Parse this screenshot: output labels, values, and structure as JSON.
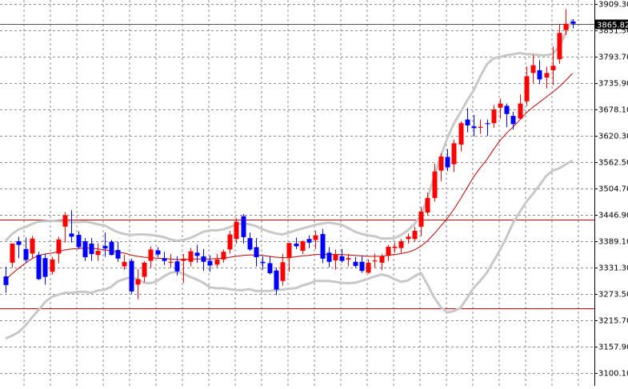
{
  "chart_data": {
    "type": "candlestick",
    "ylim": [
      3100.1,
      3909.3
    ],
    "y_ticks": [
      "3909.30",
      "3851.50",
      "3793.70",
      "3735.90",
      "3678.10",
      "3620.30",
      "3562.50",
      "3504.70",
      "3446.90",
      "3389.10",
      "3331.30",
      "3273.50",
      "3215.70",
      "3157.90",
      "3100.10"
    ],
    "current_price": "3865.82",
    "horizontal_lines": [
      3437.0,
      3242.0
    ],
    "colors": {
      "bull": "#ff0000",
      "bear": "#0000ff",
      "ma": "#c00000",
      "bands": "#c8c8c8",
      "grid": "#8c8c8c",
      "hline": "#d80000",
      "price_line": "#505050"
    },
    "candles": [
      [
        3312,
        3333,
        3276,
        3293
      ],
      [
        3342,
        3381,
        3331,
        3384
      ],
      [
        3389,
        3399,
        3352,
        3381
      ],
      [
        3372,
        3397,
        3342,
        3348
      ],
      [
        3362,
        3401,
        3351,
        3395
      ],
      [
        3359,
        3366,
        3304,
        3306
      ],
      [
        3352,
        3361,
        3294,
        3311
      ],
      [
        3322,
        3355,
        3316,
        3349
      ],
      [
        3362,
        3399,
        3341,
        3393
      ],
      [
        3421,
        3453,
        3386,
        3446
      ],
      [
        3406,
        3457,
        3386,
        3399
      ],
      [
        3403,
        3411,
        3372,
        3376
      ],
      [
        3389,
        3396,
        3346,
        3354
      ],
      [
        3384,
        3396,
        3346,
        3361
      ],
      [
        3359,
        3385,
        3346,
        3368
      ],
      [
        3379,
        3408,
        3355,
        3373
      ],
      [
        3388,
        3392,
        3358,
        3359
      ],
      [
        3370,
        3388,
        3344,
        3351
      ],
      [
        3334,
        3359,
        3326,
        3344
      ],
      [
        3346,
        3351,
        3274,
        3279
      ],
      [
        3294,
        3328,
        3262,
        3306
      ],
      [
        3311,
        3346,
        3299,
        3342
      ],
      [
        3346,
        3378,
        3331,
        3371
      ],
      [
        3369,
        3376,
        3354,
        3360
      ],
      [
        3352,
        3366,
        3337,
        3346
      ],
      [
        3342,
        3361,
        3331,
        3344
      ],
      [
        3345,
        3356,
        3314,
        3323
      ],
      [
        3346,
        3361,
        3298,
        3351
      ],
      [
        3344,
        3374,
        3334,
        3367
      ],
      [
        3364,
        3381,
        3342,
        3357
      ],
      [
        3356,
        3372,
        3324,
        3344
      ],
      [
        3346,
        3358,
        3322,
        3336
      ],
      [
        3338,
        3361,
        3332,
        3349
      ],
      [
        3349,
        3371,
        3342,
        3366
      ],
      [
        3371,
        3412,
        3362,
        3404
      ],
      [
        3394,
        3440,
        3384,
        3432
      ],
      [
        3444,
        3449,
        3384,
        3398
      ],
      [
        3396,
        3408,
        3368,
        3371
      ],
      [
        3376,
        3396,
        3334,
        3354
      ],
      [
        3344,
        3356,
        3327,
        3341
      ],
      [
        3341,
        3355,
        3316,
        3319
      ],
      [
        3325,
        3331,
        3271,
        3283
      ],
      [
        3302,
        3361,
        3292,
        3343
      ],
      [
        3353,
        3386,
        3322,
        3385
      ],
      [
        3384,
        3397,
        3372,
        3378
      ],
      [
        3368,
        3391,
        3361,
        3389
      ],
      [
        3394,
        3402,
        3374,
        3386
      ],
      [
        3392,
        3412,
        3372,
        3402
      ],
      [
        3405,
        3416,
        3341,
        3351
      ],
      [
        3364,
        3376,
        3332,
        3344
      ],
      [
        3347,
        3371,
        3327,
        3361
      ],
      [
        3356,
        3372,
        3342,
        3346
      ],
      [
        3349,
        3361,
        3334,
        3352
      ],
      [
        3344,
        3355,
        3331,
        3335
      ],
      [
        3344,
        3358,
        3320,
        3324
      ],
      [
        3320,
        3349,
        3318,
        3342
      ],
      [
        3345,
        3362,
        3331,
        3347
      ],
      [
        3342,
        3361,
        3326,
        3356
      ],
      [
        3357,
        3381,
        3346,
        3377
      ],
      [
        3374,
        3386,
        3364,
        3377
      ],
      [
        3374,
        3394,
        3364,
        3389
      ],
      [
        3394,
        3406,
        3384,
        3399
      ],
      [
        3394,
        3421,
        3388,
        3412
      ],
      [
        3421,
        3464,
        3401,
        3454
      ],
      [
        3452,
        3496,
        3446,
        3484
      ],
      [
        3484,
        3559,
        3476,
        3542
      ],
      [
        3544,
        3582,
        3521,
        3575
      ],
      [
        3574,
        3591,
        3543,
        3551
      ],
      [
        3558,
        3612,
        3541,
        3604
      ],
      [
        3601,
        3652,
        3586,
        3648
      ],
      [
        3656,
        3681,
        3628,
        3643
      ],
      [
        3641,
        3666,
        3619,
        3637
      ],
      [
        3638,
        3656,
        3625,
        3640
      ],
      [
        3648,
        3656,
        3620,
        3646
      ],
      [
        3648,
        3688,
        3638,
        3678
      ],
      [
        3682,
        3702,
        3658,
        3691
      ],
      [
        3686,
        3691,
        3639,
        3668
      ],
      [
        3664,
        3673,
        3634,
        3646
      ],
      [
        3658,
        3711,
        3658,
        3691
      ],
      [
        3696,
        3772,
        3686,
        3751
      ],
      [
        3758,
        3798,
        3736,
        3775
      ],
      [
        3764,
        3786,
        3734,
        3744
      ],
      [
        3748,
        3772,
        3724,
        3758
      ],
      [
        3764,
        3816,
        3731,
        3774
      ],
      [
        3788,
        3864,
        3778,
        3846
      ],
      [
        3852,
        3898,
        3841,
        3866
      ],
      [
        3871,
        3876,
        3856,
        3866
      ]
    ],
    "ma": [
      3305,
      3318,
      3330,
      3341,
      3351,
      3358,
      3361,
      3363,
      3366,
      3370,
      3372,
      3373,
      3374,
      3374,
      3372,
      3370,
      3368,
      3365,
      3363,
      3359,
      3356,
      3354,
      3353,
      3352,
      3351,
      3350,
      3349,
      3349,
      3350,
      3350,
      3350,
      3350,
      3351,
      3352,
      3354,
      3356,
      3358,
      3359,
      3359,
      3358,
      3356,
      3354,
      3353,
      3353,
      3355,
      3357,
      3358,
      3360,
      3360,
      3360,
      3360,
      3360,
      3359,
      3358,
      3357,
      3356,
      3356,
      3356,
      3358,
      3360,
      3362,
      3365,
      3370,
      3378,
      3390,
      3405,
      3422,
      3439,
      3459,
      3482,
      3506,
      3530,
      3550,
      3568,
      3590,
      3610,
      3626,
      3640,
      3655,
      3671,
      3683,
      3694,
      3705,
      3716,
      3728,
      3742,
      3757
    ],
    "upper_band": [
      3390,
      3405,
      3415,
      3420,
      3427,
      3432,
      3433,
      3434,
      3433,
      3432,
      3431,
      3431,
      3432,
      3430,
      3426,
      3424,
      3416,
      3409,
      3405,
      3403,
      3404,
      3404,
      3403,
      3401,
      3398,
      3393,
      3390,
      3392,
      3396,
      3403,
      3410,
      3413,
      3413,
      3415,
      3420,
      3426,
      3428,
      3426,
      3422,
      3415,
      3410,
      3406,
      3404,
      3408,
      3413,
      3417,
      3421,
      3425,
      3428,
      3430,
      3428,
      3425,
      3418,
      3410,
      3405,
      3402,
      3400,
      3395,
      3395,
      3396,
      3403,
      3413,
      3426,
      3446,
      3483,
      3530,
      3575,
      3615,
      3647,
      3672,
      3697,
      3720,
      3750,
      3777,
      3790,
      3793,
      3797,
      3799,
      3802,
      3799,
      3799,
      3797,
      3797,
      3800,
      3816,
      3847,
      3876
    ],
    "lower_band": [
      3176,
      3182,
      3190,
      3204,
      3222,
      3238,
      3256,
      3267,
      3272,
      3276,
      3276,
      3278,
      3278,
      3276,
      3281,
      3283,
      3289,
      3301,
      3306,
      3310,
      3306,
      3298,
      3297,
      3302,
      3312,
      3320,
      3322,
      3318,
      3311,
      3305,
      3298,
      3288,
      3286,
      3286,
      3284,
      3282,
      3282,
      3284,
      3280,
      3280,
      3280,
      3282,
      3283,
      3285,
      3286,
      3292,
      3296,
      3302,
      3302,
      3302,
      3300,
      3298,
      3297,
      3298,
      3302,
      3307,
      3312,
      3316,
      3313,
      3306,
      3300,
      3303,
      3312,
      3320,
      3294,
      3266,
      3245,
      3233,
      3236,
      3243,
      3264,
      3287,
      3302,
      3320,
      3345,
      3370,
      3398,
      3430,
      3453,
      3476,
      3493,
      3512,
      3532,
      3544,
      3549,
      3558,
      3566
    ]
  }
}
